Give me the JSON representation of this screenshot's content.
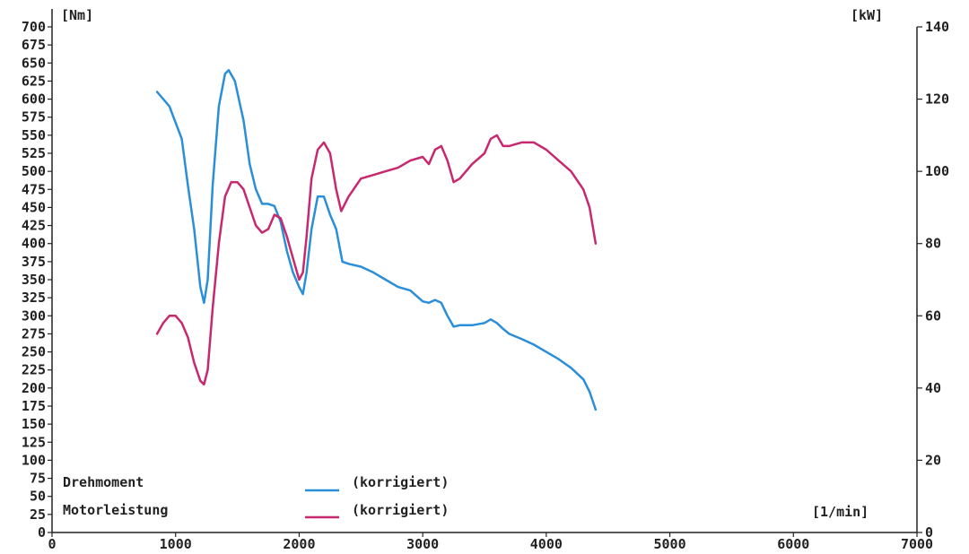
{
  "chart_data": {
    "type": "line",
    "title": "",
    "x_unit": "[1/min]",
    "y_left_unit": "[Nm]",
    "y_right_unit": "[kW]",
    "xlim": [
      0,
      7000
    ],
    "ylim_left": [
      0,
      700
    ],
    "ylim_right": [
      0,
      140
    ],
    "x_ticks": [
      "0",
      "1000",
      "2000",
      "3000",
      "4000",
      "5000",
      "6000",
      "7000"
    ],
    "y_left_ticks": [
      "0",
      "25",
      "50",
      "75",
      "100",
      "125",
      "150",
      "175",
      "200",
      "225",
      "250",
      "275",
      "300",
      "325",
      "350",
      "375",
      "400",
      "425",
      "450",
      "475",
      "500",
      "525",
      "550",
      "575",
      "600",
      "625",
      "650",
      "675",
      "700"
    ],
    "y_right_ticks": [
      "0",
      "20",
      "40",
      "60",
      "80",
      "100",
      "120",
      "140"
    ],
    "grid": false,
    "legend": {
      "position": "bottom-left",
      "entries": [
        {
          "label": "Drehmoment",
          "suffix": "(korrigiert)",
          "color": "#2a8fd8"
        },
        {
          "label": "Motorleistung",
          "suffix": "(korrigiert)",
          "color": "#c8286e"
        }
      ]
    },
    "series": [
      {
        "name": "Drehmoment",
        "axis": "left",
        "color": "#2a8fd8",
        "x": [
          850,
          950,
          1050,
          1100,
          1150,
          1200,
          1230,
          1260,
          1300,
          1350,
          1400,
          1430,
          1480,
          1550,
          1600,
          1650,
          1700,
          1750,
          1800,
          1850,
          1900,
          1950,
          2000,
          2030,
          2060,
          2100,
          2150,
          2200,
          2250,
          2300,
          2350,
          2400,
          2500,
          2600,
          2700,
          2800,
          2900,
          3000,
          3050,
          3100,
          3150,
          3200,
          3250,
          3300,
          3400,
          3500,
          3550,
          3600,
          3650,
          3700,
          3800,
          3900,
          4000,
          4100,
          4200,
          4300,
          4350,
          4400
        ],
        "y": [
          610,
          590,
          545,
          480,
          420,
          340,
          318,
          350,
          480,
          590,
          635,
          640,
          625,
          570,
          510,
          475,
          455,
          455,
          452,
          430,
          390,
          360,
          340,
          330,
          360,
          420,
          465,
          465,
          440,
          420,
          375,
          372,
          368,
          360,
          350,
          340,
          335,
          320,
          318,
          322,
          318,
          300,
          285,
          287,
          287,
          290,
          295,
          290,
          282,
          275,
          268,
          260,
          250,
          240,
          228,
          212,
          195,
          170
        ]
      },
      {
        "name": "Motorleistung",
        "axis": "right",
        "color": "#c8286e",
        "x": [
          850,
          900,
          950,
          1000,
          1050,
          1100,
          1150,
          1200,
          1230,
          1260,
          1300,
          1350,
          1400,
          1450,
          1500,
          1550,
          1600,
          1650,
          1700,
          1750,
          1800,
          1850,
          1900,
          1950,
          2000,
          2030,
          2060,
          2100,
          2150,
          2200,
          2250,
          2300,
          2340,
          2400,
          2500,
          2600,
          2700,
          2800,
          2900,
          3000,
          3050,
          3100,
          3150,
          3200,
          3250,
          3300,
          3400,
          3500,
          3550,
          3600,
          3650,
          3700,
          3800,
          3900,
          4000,
          4100,
          4200,
          4300,
          4350,
          4400
        ],
        "y": [
          55,
          58,
          60,
          60,
          58,
          54,
          47,
          42,
          41,
          45,
          62,
          80,
          93,
          97,
          97,
          95,
          90,
          85,
          83,
          84,
          88,
          87,
          82,
          76,
          70,
          72,
          82,
          98,
          106,
          108,
          105,
          95,
          89,
          93,
          98,
          99,
          100,
          101,
          103,
          104,
          102,
          106,
          107,
          103,
          97,
          98,
          102,
          105,
          109,
          110,
          107,
          107,
          108,
          108,
          106,
          103,
          100,
          95,
          90,
          80
        ]
      }
    ]
  }
}
